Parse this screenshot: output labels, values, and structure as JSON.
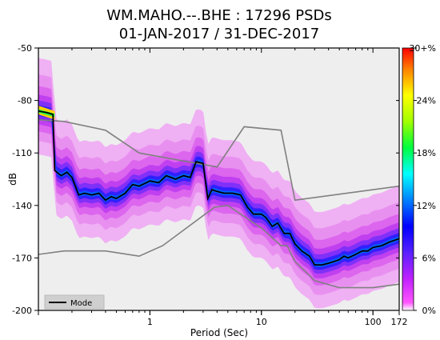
{
  "chart_data": {
    "type": "heatmap",
    "title_lines": [
      "WM.MAHO.--.BHE : 17296 PSDs",
      "01-JAN-2017 / 31-DEC-2017"
    ],
    "xlabel": "Period (Sec)",
    "ylabel": "dB",
    "x_scale": "log",
    "x_range": [
      0.1,
      172
    ],
    "y_range": [
      -200,
      -50
    ],
    "x_ticks": [
      {
        "value": 1,
        "label": "1"
      },
      {
        "value": 10,
        "label": "10"
      },
      {
        "value": 100,
        "label": "100"
      },
      {
        "value": 172,
        "label": "172"
      }
    ],
    "y_ticks": [
      -50,
      -80,
      -110,
      -140,
      -170,
      -200
    ],
    "colorbar": {
      "label_values": [
        "0%",
        "6%",
        "12%",
        "18%",
        "24%",
        "30+%"
      ],
      "range": [
        0,
        30
      ]
    },
    "legend": {
      "position": "bottom-left",
      "entries": [
        "Mode"
      ]
    },
    "mode_series": {
      "name": "Mode",
      "x": [
        0.1,
        0.12,
        0.135,
        0.14,
        0.16,
        0.18,
        0.2,
        0.23,
        0.26,
        0.3,
        0.35,
        0.4,
        0.45,
        0.5,
        0.6,
        0.7,
        0.8,
        1.0,
        1.2,
        1.4,
        1.7,
        2.0,
        2.3,
        2.6,
        3.0,
        3.3,
        3.6,
        4.0,
        4.6,
        5.5,
        6.5,
        7.5,
        8.5,
        10,
        11,
        12.5,
        14,
        16,
        18,
        20,
        23,
        27,
        30,
        35,
        40,
        45,
        50,
        55,
        60,
        70,
        80,
        90,
        100,
        120,
        140,
        172
      ],
      "y": [
        -86,
        -87,
        -88,
        -120,
        -123,
        -121,
        -124,
        -134,
        -133,
        -134,
        -133,
        -137,
        -135,
        -136,
        -133,
        -128,
        -129,
        -126,
        -127,
        -123,
        -125,
        -123,
        -124,
        -115,
        -116,
        -136,
        -131,
        -132,
        -133,
        -133,
        -134,
        -141,
        -145,
        -145,
        -147,
        -152,
        -150,
        -156,
        -156,
        -162,
        -166,
        -169,
        -174,
        -174,
        -173,
        -172,
        -171,
        -169,
        -170,
        -168,
        -166,
        -166,
        -164,
        -163,
        -161,
        -159
      ]
    },
    "noise_model_high_db": {
      "x": [
        0.1,
        0.17,
        0.4,
        0.8,
        4,
        7,
        15,
        20,
        172
      ],
      "y": [
        -91,
        -92,
        -97,
        -110,
        -118,
        -95,
        -97,
        -137,
        -129
      ]
    },
    "noise_model_low_db": {
      "x": [
        0.1,
        0.17,
        0.4,
        0.8,
        1.3,
        3.8,
        5,
        10,
        15,
        17,
        20,
        30,
        50,
        100,
        172
      ],
      "y": [
        -168,
        -166,
        -166,
        -169,
        -163,
        -141,
        -140,
        -153,
        -163,
        -163,
        -172,
        -183,
        -187,
        -187,
        -185
      ]
    }
  }
}
